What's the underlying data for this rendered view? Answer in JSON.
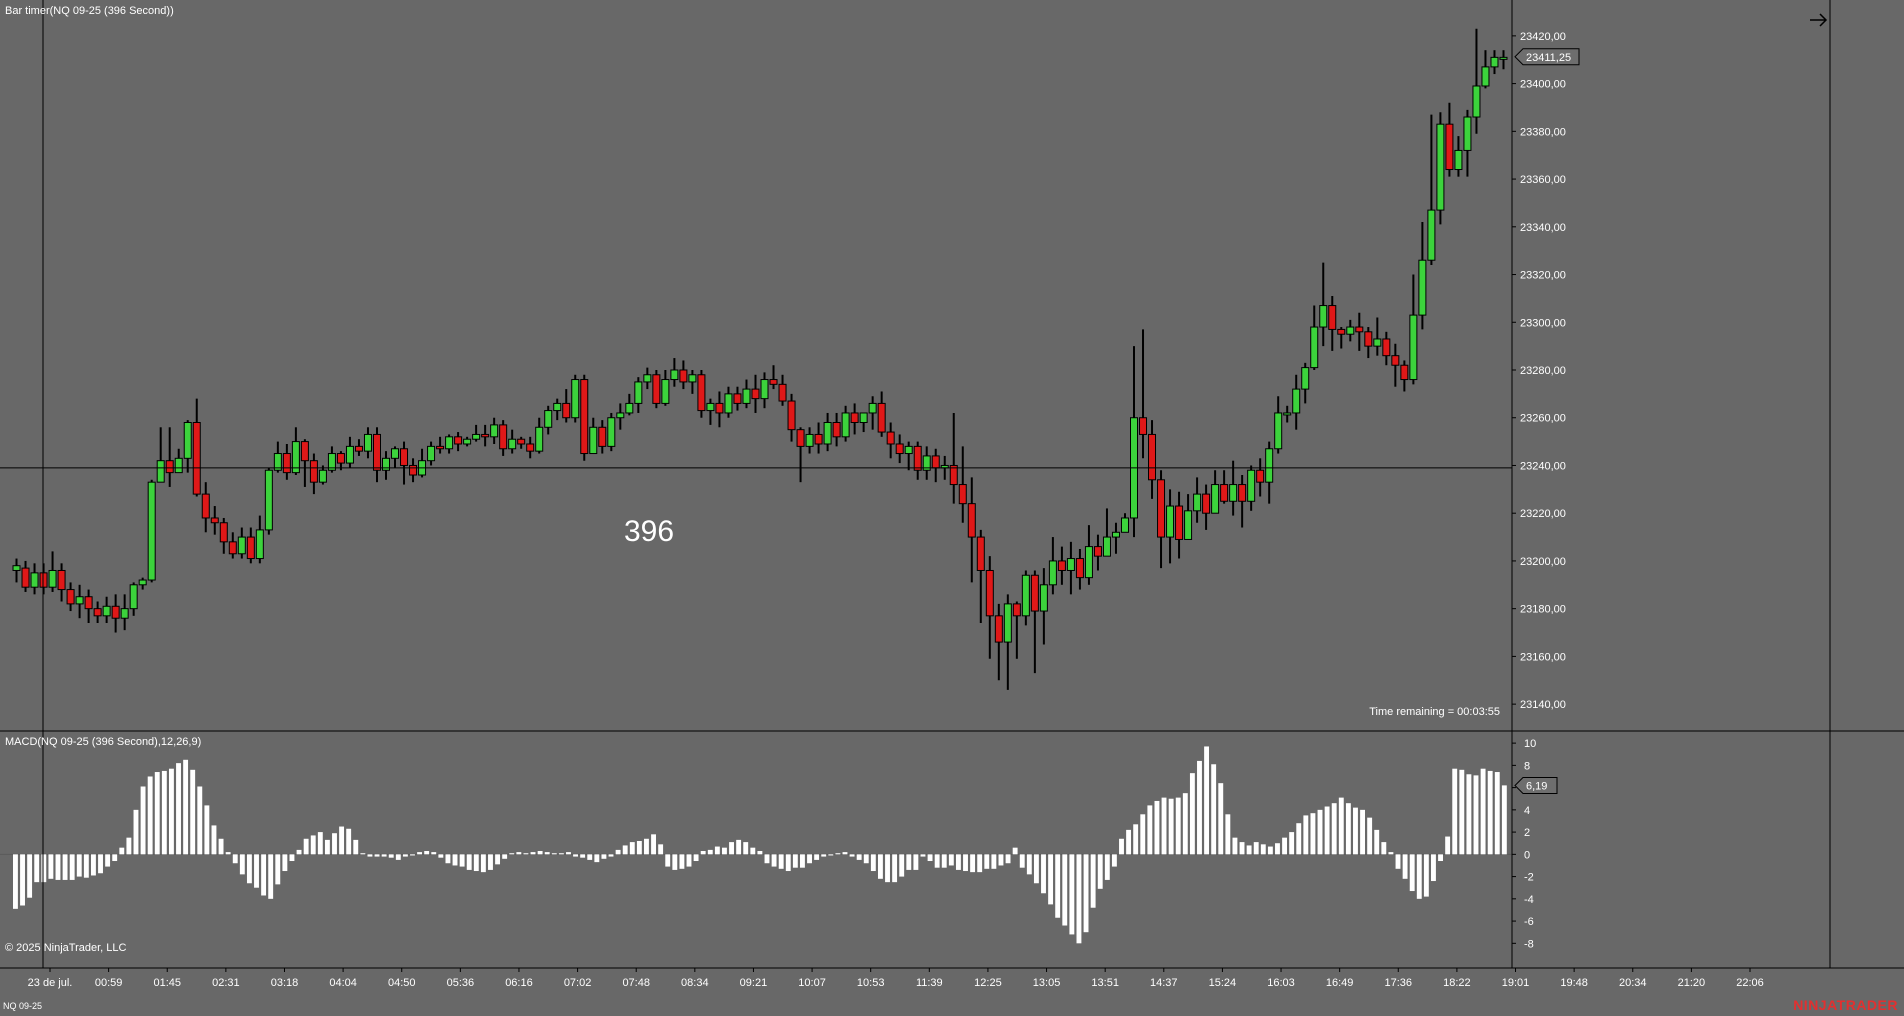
{
  "window": {
    "title": "Bar timer(NQ 09-25 (396 Second))",
    "macd_title": "MACD(NQ 09-25 (396 Second),12,26,9)",
    "copyright": "© 2025 NinjaTrader, LLC",
    "symbol": "NQ 09-25",
    "brand": "NINJATRADER",
    "time_remaining": "Time remaining = 00:03:55",
    "bar_count": "396"
  },
  "colors": {
    "background": "#686868",
    "up_candle": "#3cd33c",
    "down_candle": "#e01818",
    "wick": "#000000",
    "macd_bar": "#ffffff",
    "brand": "#e23030"
  },
  "chart_data": [
    {
      "type": "candlestick",
      "title": "Bar timer(NQ 09-25 (396 Second))",
      "ylim": [
        23130,
        23430
      ],
      "y_ticks": [
        "23140,00",
        "23160,00",
        "23180,00",
        "23200,00",
        "23220,00",
        "23240,00",
        "23260,00",
        "23280,00",
        "23300,00",
        "23320,00",
        "23340,00",
        "23360,00",
        "23380,00",
        "23400,00",
        "23420,00"
      ],
      "x_ticks": [
        "23 de jul.",
        "00:59",
        "01:45",
        "02:31",
        "03:18",
        "04:04",
        "04:50",
        "05:36",
        "06:16",
        "07:02",
        "07:48",
        "08:34",
        "09:21",
        "10:07",
        "10:53",
        "11:39",
        "12:25",
        "13:05",
        "13:51",
        "14:37",
        "15:24",
        "16:03",
        "16:49",
        "17:36",
        "18:22",
        "19:01",
        "19:48",
        "20:34",
        "21:20",
        "22:06"
      ],
      "last_price_label": "23411,25",
      "crosshair_price": 23239,
      "candles": [
        [
          23196,
          23198,
          23191,
          23201
        ],
        [
          23197,
          23189,
          23187,
          23200
        ],
        [
          23189,
          23195,
          23186,
          23199
        ],
        [
          23195,
          23189,
          23186,
          23199
        ],
        [
          23189,
          23196,
          23187,
          23204
        ],
        [
          23196,
          23188,
          23183,
          23199
        ],
        [
          23188,
          23182,
          23179,
          23191
        ],
        [
          23182,
          23185,
          23176,
          23190
        ],
        [
          23185,
          23180,
          23174,
          23188
        ],
        [
          23180,
          23177,
          23174,
          23183
        ],
        [
          23177,
          23181,
          23174,
          23185
        ],
        [
          23181,
          23176,
          23170,
          23186
        ],
        [
          23176,
          23180,
          23171,
          23186
        ],
        [
          23180,
          23190,
          23177,
          23191
        ],
        [
          23190,
          23192,
          23188,
          23193
        ],
        [
          23192,
          23233,
          23191,
          23234
        ],
        [
          23233,
          23242,
          23233,
          23256
        ],
        [
          23242,
          23237,
          23231,
          23256
        ],
        [
          23237,
          23243,
          23237,
          23247
        ],
        [
          23243,
          23258,
          23237,
          23259
        ],
        [
          23258,
          23228,
          23227,
          23268
        ],
        [
          23228,
          23218,
          23212,
          23233
        ],
        [
          23218,
          23216,
          23211,
          23223
        ],
        [
          23216,
          23208,
          23203,
          23218
        ],
        [
          23208,
          23203,
          23201,
          23212
        ],
        [
          23203,
          23210,
          23201,
          23214
        ],
        [
          23210,
          23201,
          23199,
          23214
        ],
        [
          23201,
          23213,
          23199,
          23219
        ],
        [
          23213,
          23238,
          23211,
          23239
        ],
        [
          23238,
          23245,
          23237,
          23250
        ],
        [
          23245,
          23237,
          23234,
          23249
        ],
        [
          23237,
          23250,
          23236,
          23256
        ],
        [
          23250,
          23242,
          23231,
          23251
        ],
        [
          23242,
          23233,
          23228,
          23245
        ],
        [
          23233,
          23238,
          23232,
          23240
        ],
        [
          23238,
          23245,
          23237,
          23248
        ],
        [
          23245,
          23241,
          23238,
          23246
        ],
        [
          23241,
          23248,
          23239,
          23252
        ],
        [
          23248,
          23246,
          23244,
          23251
        ],
        [
          23246,
          23253,
          23243,
          23256
        ],
        [
          23253,
          23238,
          23233,
          23256
        ],
        [
          23238,
          23243,
          23234,
          23246
        ],
        [
          23243,
          23247,
          23239,
          23248
        ],
        [
          23247,
          23240,
          23232,
          23250
        ],
        [
          23240,
          23236,
          23233,
          23243
        ],
        [
          23236,
          23242,
          23235,
          23247
        ],
        [
          23242,
          23248,
          23240,
          23250
        ],
        [
          23248,
          23247,
          23245,
          23252
        ],
        [
          23247,
          23252,
          23245,
          23253
        ],
        [
          23252,
          23249,
          23246,
          23254
        ],
        [
          23249,
          23251,
          23248,
          23252
        ],
        [
          23251,
          23253,
          23250,
          23257
        ],
        [
          23253,
          23252,
          23248,
          23257
        ],
        [
          23252,
          23257,
          23249,
          23260
        ],
        [
          23257,
          23247,
          23244,
          23259
        ],
        [
          23247,
          23251,
          23245,
          23255
        ],
        [
          23251,
          23249,
          23247,
          23252
        ],
        [
          23249,
          23246,
          23243,
          23252
        ],
        [
          23246,
          23256,
          23245,
          23260
        ],
        [
          23256,
          23263,
          23253,
          23265
        ],
        [
          23263,
          23266,
          23259,
          23268
        ],
        [
          23266,
          23260,
          23258,
          23272
        ],
        [
          23260,
          23276,
          23258,
          23278
        ],
        [
          23276,
          23245,
          23242,
          23278
        ],
        [
          23245,
          23256,
          23245,
          23260
        ],
        [
          23256,
          23248,
          23245,
          23259
        ],
        [
          23248,
          23260,
          23246,
          23262
        ],
        [
          23260,
          23262,
          23255,
          23266
        ],
        [
          23262,
          23266,
          23261,
          23270
        ],
        [
          23266,
          23275,
          23262,
          23277
        ],
        [
          23275,
          23278,
          23272,
          23281
        ],
        [
          23278,
          23266,
          23264,
          23280
        ],
        [
          23266,
          23276,
          23265,
          23280
        ],
        [
          23276,
          23280,
          23273,
          23285
        ],
        [
          23280,
          23275,
          23272,
          23284
        ],
        [
          23275,
          23278,
          23270,
          23280
        ],
        [
          23278,
          23263,
          23260,
          23280
        ],
        [
          23263,
          23266,
          23257,
          23268
        ],
        [
          23266,
          23262,
          23256,
          23271
        ],
        [
          23262,
          23270,
          23260,
          23273
        ],
        [
          23270,
          23266,
          23263,
          23273
        ],
        [
          23266,
          23272,
          23264,
          23276
        ],
        [
          23272,
          23268,
          23262,
          23278
        ],
        [
          23268,
          23276,
          23264,
          23279
        ],
        [
          23276,
          23274,
          23272,
          23282
        ],
        [
          23274,
          23267,
          23265,
          23278
        ],
        [
          23267,
          23255,
          23250,
          23270
        ],
        [
          23255,
          23248,
          23233,
          23256
        ],
        [
          23248,
          23253,
          23245,
          23256
        ],
        [
          23253,
          23249,
          23245,
          23258
        ],
        [
          23249,
          23258,
          23246,
          23262
        ],
        [
          23258,
          23252,
          23248,
          23262
        ],
        [
          23252,
          23262,
          23250,
          23265
        ],
        [
          23262,
          23258,
          23253,
          23266
        ],
        [
          23258,
          23262,
          23254,
          23262
        ],
        [
          23262,
          23266,
          23255,
          23269
        ],
        [
          23266,
          23254,
          23252,
          23271
        ],
        [
          23254,
          23249,
          23243,
          23258
        ],
        [
          23249,
          23245,
          23241,
          23253
        ],
        [
          23245,
          23248,
          23238,
          23250
        ],
        [
          23248,
          23238,
          23234,
          23250
        ],
        [
          23238,
          23244,
          23234,
          23248
        ],
        [
          23244,
          23239,
          23233,
          23247
        ],
        [
          23239,
          23240,
          23234,
          23244
        ],
        [
          23240,
          23232,
          23224,
          23262
        ],
        [
          23232,
          23224,
          23216,
          23248
        ],
        [
          23224,
          23210,
          23191,
          23235
        ],
        [
          23210,
          23196,
          23174,
          23213
        ],
        [
          23196,
          23177,
          23159,
          23202
        ],
        [
          23177,
          23166,
          23150,
          23182
        ],
        [
          23166,
          23182,
          23146,
          23186
        ],
        [
          23182,
          23177,
          23159,
          23183
        ],
        [
          23177,
          23194,
          23173,
          23196
        ],
        [
          23194,
          23179,
          23153,
          23196
        ],
        [
          23179,
          23190,
          23165,
          23197
        ],
        [
          23190,
          23200,
          23186,
          23210
        ],
        [
          23200,
          23196,
          23190,
          23206
        ],
        [
          23196,
          23201,
          23186,
          23208
        ],
        [
          23201,
          23193,
          23188,
          23205
        ],
        [
          23193,
          23206,
          23190,
          23215
        ],
        [
          23206,
          23202,
          23196,
          23211
        ],
        [
          23202,
          23210,
          23204,
          23222
        ],
        [
          23210,
          23212,
          23203,
          23216
        ],
        [
          23212,
          23218,
          23213,
          23220
        ],
        [
          23218,
          23260,
          23210,
          23290
        ],
        [
          23260,
          23253,
          23243,
          23297
        ],
        [
          23253,
          23234,
          23226,
          23259
        ],
        [
          23234,
          23210,
          23197,
          23238
        ],
        [
          23210,
          23223,
          23199,
          23230
        ],
        [
          23223,
          23209,
          23201,
          23229
        ],
        [
          23209,
          23221,
          23209,
          23228
        ],
        [
          23221,
          23228,
          23216,
          23235
        ],
        [
          23228,
          23220,
          23213,
          23232
        ],
        [
          23220,
          23232,
          23221,
          23238
        ],
        [
          23232,
          23225,
          23224,
          23238
        ],
        [
          23225,
          23232,
          23219,
          23242
        ],
        [
          23232,
          23225,
          23214,
          23236
        ],
        [
          23225,
          23238,
          23221,
          23240
        ],
        [
          23238,
          23233,
          23227,
          23243
        ],
        [
          23233,
          23247,
          23224,
          23250
        ],
        [
          23247,
          23262,
          23245,
          23269
        ],
        [
          23262,
          23262,
          23258,
          23265
        ],
        [
          23262,
          23272,
          23255,
          23278
        ],
        [
          23272,
          23281,
          23266,
          23283
        ],
        [
          23281,
          23298,
          23280,
          23307
        ],
        [
          23298,
          23307,
          23290,
          23325
        ],
        [
          23307,
          23297,
          23288,
          23311
        ],
        [
          23297,
          23295,
          23289,
          23298
        ],
        [
          23295,
          23298,
          23292,
          23301
        ],
        [
          23298,
          23296,
          23288,
          23304
        ],
        [
          23296,
          23290,
          23285,
          23298
        ],
        [
          23290,
          23293,
          23286,
          23302
        ],
        [
          23293,
          23286,
          23282,
          23296
        ],
        [
          23286,
          23282,
          23273,
          23291
        ],
        [
          23282,
          23276,
          23271,
          23284
        ],
        [
          23276,
          23303,
          23274,
          23320
        ],
        [
          23303,
          23326,
          23297,
          23342
        ],
        [
          23326,
          23347,
          23324,
          23387
        ],
        [
          23347,
          23383,
          23341,
          23388
        ],
        [
          23383,
          23364,
          23361,
          23392
        ],
        [
          23364,
          23372,
          23361,
          23378
        ],
        [
          23372,
          23386,
          23361,
          23389
        ],
        [
          23386,
          23399,
          23379,
          23423
        ],
        [
          23399,
          23407,
          23398,
          23414
        ],
        [
          23407,
          23411,
          23404,
          23414
        ],
        [
          23411,
          23411,
          23406,
          23414
        ]
      ]
    },
    {
      "type": "bar",
      "title": "MACD(NQ 09-25 (396 Second),12,26,9)",
      "ylim": [
        -9.5,
        11
      ],
      "y_ticks": [
        "10",
        "8",
        "6",
        "4",
        "2",
        "0",
        "-2",
        "-4",
        "-6",
        "-8"
      ],
      "last_value_label": "6,19",
      "values": [
        -4.9,
        -4.6,
        -3.9,
        -2.5,
        -2.5,
        -2.2,
        -2.3,
        -2.3,
        -2.3,
        -2.0,
        -2.1,
        -1.9,
        -1.7,
        -1.1,
        -0.6,
        0.6,
        1.5,
        4.0,
        6.1,
        7.0,
        7.4,
        7.5,
        7.7,
        8.2,
        8.5,
        7.6,
        6.1,
        4.4,
        2.6,
        1.4,
        0.2,
        -0.8,
        -1.8,
        -2.6,
        -3.0,
        -3.7,
        -4.0,
        -2.7,
        -1.5,
        -0.6,
        0.4,
        1.4,
        1.7,
        2.0,
        1.3,
        1.9,
        2.5,
        2.3,
        1.3,
        0.1,
        -0.2,
        -0.2,
        -0.2,
        -0.3,
        -0.5,
        -0.2,
        -0.1,
        0.2,
        0.3,
        0.2,
        -0.3,
        -0.8,
        -1.0,
        -1.1,
        -1.4,
        -1.5,
        -1.6,
        -1.4,
        -0.9,
        -0.4,
        0.1,
        0.2,
        0.1,
        0.2,
        0.3,
        0.2,
        0.1,
        0.1,
        0.2,
        -0.2,
        -0.3,
        -0.5,
        -0.7,
        -0.4,
        -0.2,
        0.4,
        0.8,
        1.1,
        1.2,
        1.4,
        1.8,
        0.9,
        -1.1,
        -1.4,
        -1.3,
        -1.1,
        -0.6,
        0.3,
        0.4,
        0.7,
        0.6,
        1.1,
        1.3,
        1.1,
        0.6,
        0.3,
        -0.8,
        -1.1,
        -1.3,
        -1.5,
        -1.2,
        -1.2,
        -0.8,
        -0.5,
        -0.2,
        -0.1,
        0.1,
        0.2,
        -0.2,
        -0.5,
        -0.8,
        -1.5,
        -2.2,
        -2.5,
        -2.5,
        -2.0,
        -1.4,
        -1.4,
        -0.2,
        -0.6,
        -1.2,
        -1.2,
        -1.0,
        -1.4,
        -1.5,
        -1.6,
        -1.6,
        -1.3,
        -1.3,
        -1.0,
        -0.8,
        0.6,
        -1.2,
        -1.8,
        -2.6,
        -3.5,
        -4.5,
        -5.7,
        -6.4,
        -7.2,
        -8.0,
        -7.0,
        -4.8,
        -3.1,
        -2.3,
        -1.1,
        1.4,
        2.2,
        2.7,
        3.6,
        4.4,
        4.8,
        5.1,
        5.0,
        5.1,
        5.5,
        7.3,
        8.4,
        9.7,
        8.1,
        6.4,
        3.6,
        1.5,
        1.1,
        0.8,
        1.1,
        0.9,
        0.7,
        1.0,
        1.5,
        2.0,
        2.8,
        3.5,
        3.7,
        4.0,
        4.3,
        4.6,
        5.1,
        4.6,
        4.2,
        4.0,
        3.3,
        2.2,
        1.1,
        0.2,
        -1.3,
        -2.2,
        -3.3,
        -4.0,
        -3.8,
        -2.4,
        -0.6,
        1.6,
        7.7,
        7.6,
        7.2,
        7.1,
        7.7,
        7.5,
        7.4,
        6.2
      ]
    }
  ]
}
